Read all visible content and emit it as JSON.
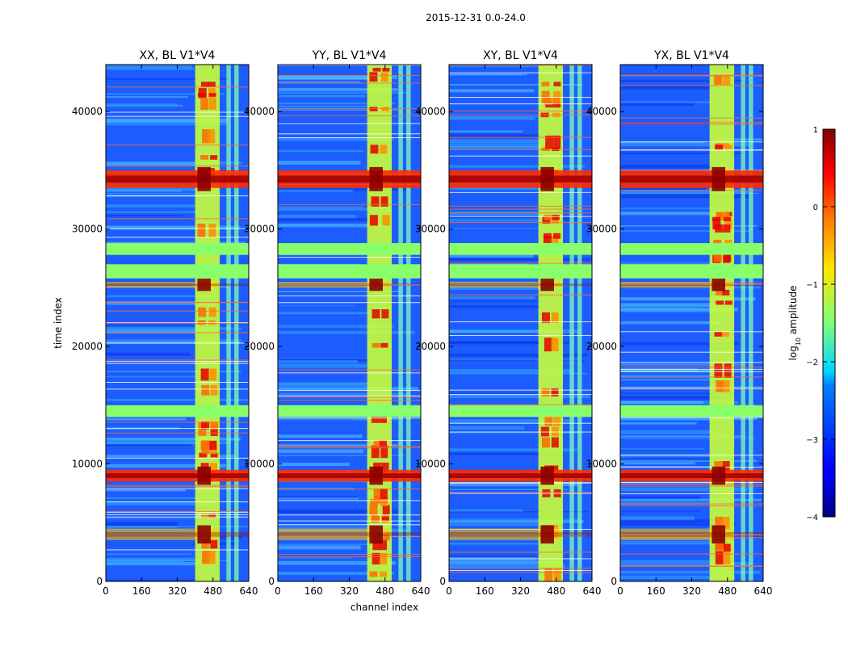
{
  "suptitle": "2015-12-31 0.0-24.0",
  "panels": [
    {
      "title": "XX, BL V1*V4"
    },
    {
      "title": "YY, BL V1*V4"
    },
    {
      "title": "XY, BL V1*V4"
    },
    {
      "title": "YX, BL V1*V4"
    }
  ],
  "xlabel": "channel index",
  "ylabel": "time index",
  "colorbar": {
    "label": "log",
    "label_sub": "10",
    "label_rest": " amplitude"
  },
  "chart_data": {
    "type": "heatmap",
    "title": "2015-12-31 0.0-24.0",
    "xlabel": "channel index",
    "ylabel": "time index",
    "xlim": [
      0,
      640
    ],
    "ylim": [
      0,
      44000
    ],
    "xticks": [
      0,
      160,
      320,
      480,
      640
    ],
    "yticks": [
      0,
      10000,
      20000,
      30000,
      40000
    ],
    "colormap": "jet",
    "clim": [
      -4,
      1
    ],
    "colorbar_ticks": [
      1,
      0,
      -1,
      -2,
      -3,
      -4
    ],
    "colorbar_tick_labels": [
      "1",
      "0",
      "−1",
      "−2",
      "−3",
      "−4"
    ],
    "panels": [
      "XX, BL V1*V4",
      "YY, BL V1*V4",
      "XY, BL V1*V4",
      "YX, BL V1*V4"
    ],
    "bright_channel_bands": [
      [
        400,
        510
      ],
      [
        540,
        560
      ],
      [
        575,
        595
      ]
    ],
    "flagged_time_bands": [
      [
        14000,
        15000
      ],
      [
        25800,
        27000
      ],
      [
        27800,
        28800
      ]
    ],
    "strong_rfi_time_bands": [
      [
        8500,
        9500
      ],
      [
        33500,
        35000
      ],
      [
        3500,
        4500
      ],
      [
        25000,
        25500
      ]
    ]
  }
}
